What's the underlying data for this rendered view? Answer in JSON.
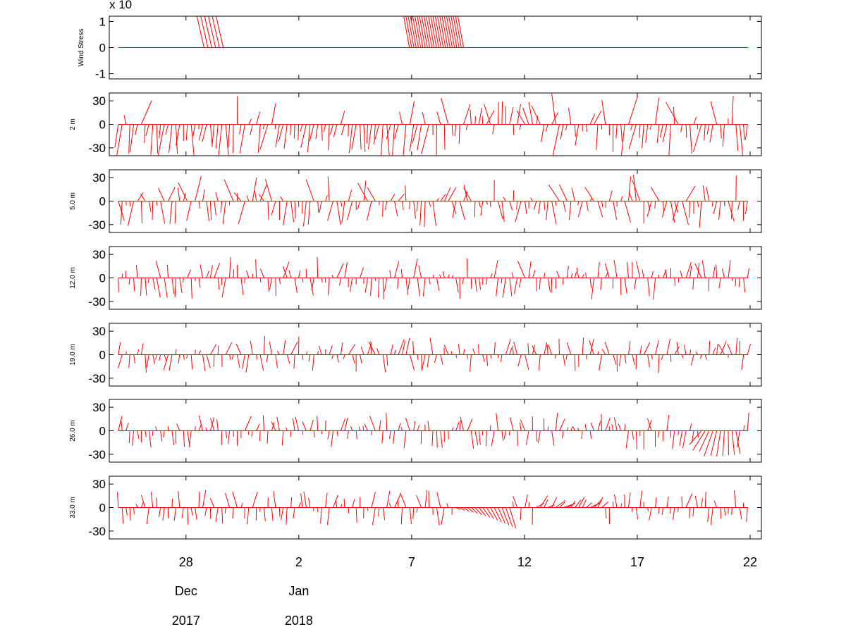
{
  "chart_data": {
    "type": "vector-stick",
    "color": "#ff0000",
    "x_axis": {
      "range_days": [
        -3.4,
        25.5
      ],
      "ticks": [
        {
          "day": 0,
          "label": "28",
          "month": "Dec",
          "year": "2017"
        },
        {
          "day": 5,
          "label": "2",
          "month": "Jan",
          "year": "2018"
        },
        {
          "day": 10,
          "label": "7"
        },
        {
          "day": 15,
          "label": "12"
        },
        {
          "day": 20,
          "label": "17"
        },
        {
          "day": 25,
          "label": "22"
        }
      ]
    },
    "panels": [
      {
        "ylabel": "Wind Stress",
        "scale_label": "x 10",
        "ylim": [
          -1.2,
          1.2
        ],
        "yticks": [
          1,
          0,
          -1
        ]
      },
      {
        "ylabel": "2 m",
        "ylim": [
          -40,
          40
        ],
        "yticks": [
          30,
          0,
          -30
        ]
      },
      {
        "ylabel": "5.0 m",
        "ylim": [
          -40,
          40
        ],
        "yticks": [
          30,
          0,
          -30
        ]
      },
      {
        "ylabel": "12.0 m",
        "ylim": [
          -40,
          40
        ],
        "yticks": [
          30,
          0,
          -30
        ]
      },
      {
        "ylabel": "19.0 m",
        "ylim": [
          -40,
          40
        ],
        "yticks": [
          30,
          0,
          -30
        ]
      },
      {
        "ylabel": "26.0 m",
        "ylim": [
          -40,
          40
        ],
        "yticks": [
          30,
          0,
          -30
        ]
      },
      {
        "ylabel": "33.0 m",
        "ylim": [
          -40,
          40
        ],
        "yticks": [
          30,
          0,
          -30
        ]
      }
    ]
  }
}
